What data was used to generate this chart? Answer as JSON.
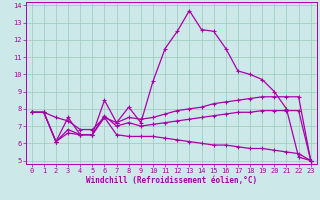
{
  "xlabel": "Windchill (Refroidissement éolien,°C)",
  "xlim": [
    -0.5,
    23.5
  ],
  "ylim": [
    4.8,
    14.2
  ],
  "xticks": [
    0,
    1,
    2,
    3,
    4,
    5,
    6,
    7,
    8,
    9,
    10,
    11,
    12,
    13,
    14,
    15,
    16,
    17,
    18,
    19,
    20,
    21,
    22,
    23
  ],
  "yticks": [
    5,
    6,
    7,
    8,
    9,
    10,
    11,
    12,
    13,
    14
  ],
  "bg_color": "#cde8e8",
  "line_color": "#aa00aa",
  "grid_color": "#99ccbb",
  "line1_x": [
    0,
    1,
    2,
    3,
    4,
    5,
    6,
    7,
    8,
    9,
    10,
    11,
    12,
    13,
    14,
    15,
    16,
    17,
    18,
    19,
    20,
    21,
    22,
    23
  ],
  "line1_y": [
    7.8,
    7.8,
    6.1,
    7.5,
    6.5,
    6.5,
    8.5,
    7.2,
    8.1,
    7.2,
    9.6,
    11.5,
    12.5,
    13.7,
    12.6,
    12.5,
    11.5,
    10.2,
    10.0,
    9.7,
    9.0,
    8.0,
    5.2,
    5.0
  ],
  "line2_x": [
    0,
    1,
    2,
    3,
    4,
    5,
    6,
    7,
    8,
    9,
    10,
    11,
    12,
    13,
    14,
    15,
    16,
    17,
    18,
    19,
    20,
    21,
    22,
    23
  ],
  "line2_y": [
    7.8,
    7.8,
    7.5,
    7.3,
    6.8,
    6.8,
    7.5,
    7.2,
    7.5,
    7.4,
    7.5,
    7.7,
    7.9,
    8.0,
    8.1,
    8.3,
    8.4,
    8.5,
    8.6,
    8.7,
    8.7,
    8.7,
    8.7,
    5.0
  ],
  "line3_x": [
    0,
    1,
    2,
    3,
    4,
    5,
    6,
    7,
    8,
    9,
    10,
    11,
    12,
    13,
    14,
    15,
    16,
    17,
    18,
    19,
    20,
    21,
    22,
    23
  ],
  "line3_y": [
    7.8,
    7.8,
    6.1,
    6.8,
    6.5,
    6.5,
    7.6,
    7.0,
    7.2,
    7.0,
    7.1,
    7.2,
    7.3,
    7.4,
    7.5,
    7.6,
    7.7,
    7.8,
    7.8,
    7.9,
    7.9,
    7.9,
    7.9,
    5.0
  ],
  "line4_x": [
    0,
    1,
    2,
    3,
    4,
    5,
    6,
    7,
    8,
    9,
    10,
    11,
    12,
    13,
    14,
    15,
    16,
    17,
    18,
    19,
    20,
    21,
    22,
    23
  ],
  "line4_y": [
    7.8,
    7.8,
    6.1,
    6.6,
    6.5,
    6.5,
    7.5,
    6.5,
    6.4,
    6.4,
    6.4,
    6.3,
    6.2,
    6.1,
    6.0,
    5.9,
    5.9,
    5.8,
    5.7,
    5.7,
    5.6,
    5.5,
    5.4,
    5.0
  ]
}
